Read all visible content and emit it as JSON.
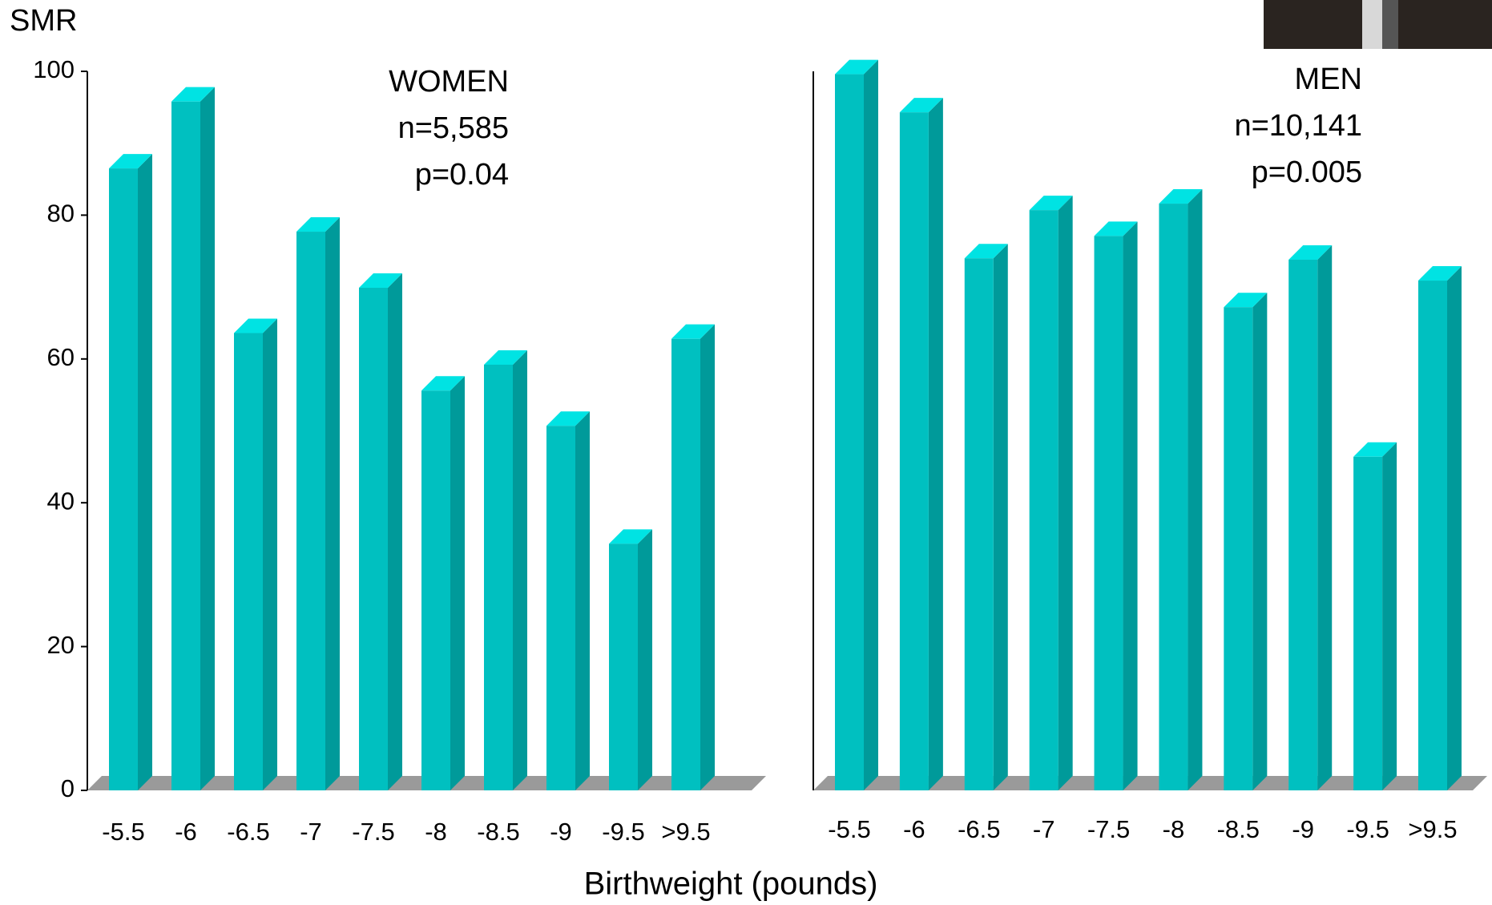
{
  "chart_data": [
    {
      "type": "bar3d",
      "ylabel": "SMR",
      "xlabel": "Birthweight (pounds)",
      "annotations": [
        "WOMEN",
        "n=5,585",
        "p=0.04"
      ],
      "categories": [
        "-5.5",
        "-6",
        "-6.5",
        "-7",
        "-7.5",
        "-8",
        "-8.5",
        "-9",
        "-9.5",
        ">9.5"
      ],
      "values": [
        86.5,
        95.8,
        63.6,
        77.7,
        69.9,
        55.6,
        59.2,
        50.7,
        34.3,
        62.8
      ],
      "color": "#00c0c0",
      "ylim": [
        0,
        100
      ],
      "yticks": [
        0,
        20,
        40,
        60,
        80,
        100
      ]
    },
    {
      "type": "bar3d",
      "annotations": [
        "MEN",
        "n=10,141",
        "p=0.005"
      ],
      "categories": [
        "-5.5",
        "-6",
        "-6.5",
        "-7",
        "-7.5",
        "-8",
        "-8.5",
        "-9",
        "-9.5",
        ">9.5"
      ],
      "values": [
        99.6,
        94.3,
        74,
        80.7,
        77.1,
        81.6,
        67.2,
        73.8,
        46.4,
        70.9
      ],
      "color": "#00c0c0",
      "ylim": [
        0,
        100
      ]
    }
  ]
}
